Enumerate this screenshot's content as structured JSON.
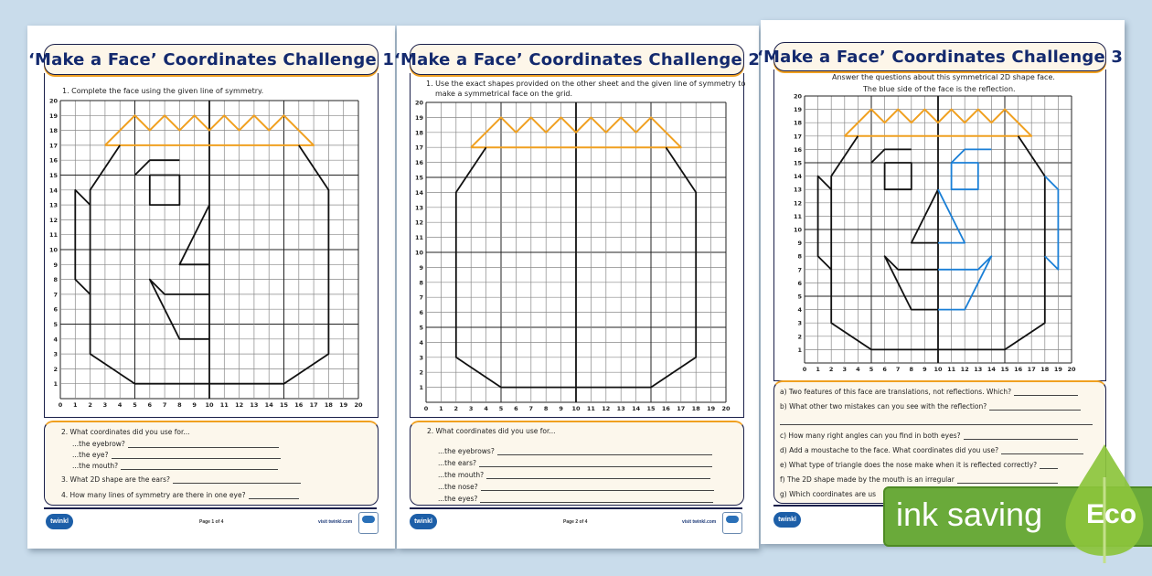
{
  "pages": [
    {
      "title": "‘Make a Face’ Coordinates Challenge 1",
      "instruction": "1.  Complete the face using the given line of symmetry.",
      "questions": [
        "2.  What coordinates did you use for...",
        "...the eyebrow?",
        "...the eye?",
        "...the mouth?",
        "3.  What 2D shape are the ears?",
        "4.  How many lines of symmetry are there in one eye?"
      ],
      "footer": {
        "logo": "twinkl",
        "page": "Page 1 of 4",
        "visit": "visit twinkl.com"
      }
    },
    {
      "title": "‘Make a Face’ Coordinates Challenge 2",
      "instruction_line1": "1.  Use the exact shapes provided on the other sheet and the given line of symmetry to",
      "instruction_line2": "make a  symmetrical face on the grid.",
      "questions": [
        "2.  What coordinates did you use for...",
        "...the eyebrows?",
        "...the ears?",
        "...the mouth?",
        "...the nose?",
        "...the eyes?"
      ],
      "footer": {
        "logo": "twinkl",
        "page": "Page 2 of 4",
        "visit": "visit twinkl.com"
      }
    },
    {
      "title": "‘Make a Face’ Coordinates Challenge 3",
      "instruction_line1": "Answer the questions about this symmetrical 2D shape face.",
      "instruction_line2": "The blue side of the face is the reflection.",
      "questions": [
        "a) Two features of this face are translations, not reflections. Which?",
        "b) What other two mistakes can you see with the reflection?",
        "c) How many right angles can you find in both eyes?",
        "d) Add a moustache to the face. What coordinates did you use?",
        "e) What type of triangle does the nose make when it is reflected correctly?",
        "f) The 2D shape made by the mouth is an irregular",
        "g) Which coordinates are us"
      ],
      "footer": {
        "logo": "twinkl"
      }
    }
  ],
  "grid": {
    "min": 0,
    "max": 20,
    "axis_labels": [
      "0",
      "1",
      "2",
      "3",
      "4",
      "5",
      "6",
      "7",
      "8",
      "9",
      "10",
      "11",
      "12",
      "13",
      "14",
      "15",
      "16",
      "17",
      "18",
      "19",
      "20"
    ]
  },
  "eco_badge": {
    "text": "ink saving",
    "label": "Eco"
  },
  "colors": {
    "navy": "#142a6e",
    "orange": "#f0a020",
    "blue": "#1a7fd6",
    "eco_green": "#6aaa3a",
    "background": "#c9dceb"
  }
}
